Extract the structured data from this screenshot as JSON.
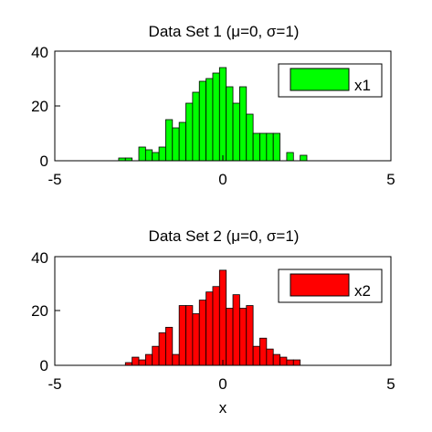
{
  "chart_data": [
    {
      "type": "bar",
      "title_prefix": "Data Set 1 (",
      "title_mu": "μ",
      "title_mid": "=0, ",
      "title_sigma": "σ",
      "title_suffix": "=1)",
      "xlabel": "",
      "ylabel": "",
      "xlim": [
        -5,
        5
      ],
      "ylim": [
        0,
        40
      ],
      "xticks": [
        "-5",
        "0",
        "5"
      ],
      "yticks": [
        "0",
        "20",
        "40"
      ],
      "color": "#00ff00",
      "legend": {
        "label": "x1",
        "placement": "top-right"
      },
      "series": [
        {
          "name": "x1",
          "bin_width": 0.2,
          "bins": [
            {
              "x": -3.0,
              "value": 1
            },
            {
              "x": -2.8,
              "value": 1
            },
            {
              "x": -2.4,
              "value": 5
            },
            {
              "x": -2.2,
              "value": 4
            },
            {
              "x": -2.0,
              "value": 3
            },
            {
              "x": -1.8,
              "value": 5
            },
            {
              "x": -1.6,
              "value": 15
            },
            {
              "x": -1.4,
              "value": 12
            },
            {
              "x": -1.2,
              "value": 14
            },
            {
              "x": -1.0,
              "value": 21
            },
            {
              "x": -0.8,
              "value": 25
            },
            {
              "x": -0.6,
              "value": 29
            },
            {
              "x": -0.4,
              "value": 30
            },
            {
              "x": -0.2,
              "value": 32
            },
            {
              "x": 0.0,
              "value": 34
            },
            {
              "x": 0.2,
              "value": 27
            },
            {
              "x": 0.4,
              "value": 21
            },
            {
              "x": 0.6,
              "value": 27
            },
            {
              "x": 0.8,
              "value": 17
            },
            {
              "x": 1.0,
              "value": 10
            },
            {
              "x": 1.2,
              "value": 10
            },
            {
              "x": 1.4,
              "value": 10
            },
            {
              "x": 1.6,
              "value": 10
            },
            {
              "x": 2.0,
              "value": 3
            },
            {
              "x": 2.4,
              "value": 2
            }
          ]
        }
      ]
    },
    {
      "type": "bar",
      "title_prefix": "Data Set 2 (",
      "title_mu": "μ",
      "title_mid": "=0, ",
      "title_sigma": "σ",
      "title_suffix": "=1)",
      "xlabel": "x",
      "ylabel": "",
      "xlim": [
        -5,
        5
      ],
      "ylim": [
        0,
        40
      ],
      "xticks": [
        "-5",
        "0",
        "5"
      ],
      "yticks": [
        "0",
        "20",
        "40"
      ],
      "color": "#ff0000",
      "legend": {
        "label": "x2",
        "placement": "top-right"
      },
      "series": [
        {
          "name": "x2",
          "bin_width": 0.2,
          "bins": [
            {
              "x": -2.8,
              "value": 1
            },
            {
              "x": -2.6,
              "value": 3
            },
            {
              "x": -2.4,
              "value": 2
            },
            {
              "x": -2.2,
              "value": 4
            },
            {
              "x": -2.0,
              "value": 7
            },
            {
              "x": -1.8,
              "value": 12
            },
            {
              "x": -1.6,
              "value": 14
            },
            {
              "x": -1.4,
              "value": 4
            },
            {
              "x": -1.2,
              "value": 22
            },
            {
              "x": -1.0,
              "value": 22
            },
            {
              "x": -0.8,
              "value": 19
            },
            {
              "x": -0.6,
              "value": 24
            },
            {
              "x": -0.4,
              "value": 27
            },
            {
              "x": -0.2,
              "value": 29
            },
            {
              "x": 0.0,
              "value": 35
            },
            {
              "x": 0.2,
              "value": 21
            },
            {
              "x": 0.4,
              "value": 26
            },
            {
              "x": 0.6,
              "value": 21
            },
            {
              "x": 0.8,
              "value": 22
            },
            {
              "x": 1.0,
              "value": 7
            },
            {
              "x": 1.2,
              "value": 10
            },
            {
              "x": 1.4,
              "value": 6
            },
            {
              "x": 1.6,
              "value": 4
            },
            {
              "x": 1.8,
              "value": 3
            },
            {
              "x": 2.0,
              "value": 2
            },
            {
              "x": 2.2,
              "value": 2
            }
          ]
        }
      ]
    }
  ]
}
